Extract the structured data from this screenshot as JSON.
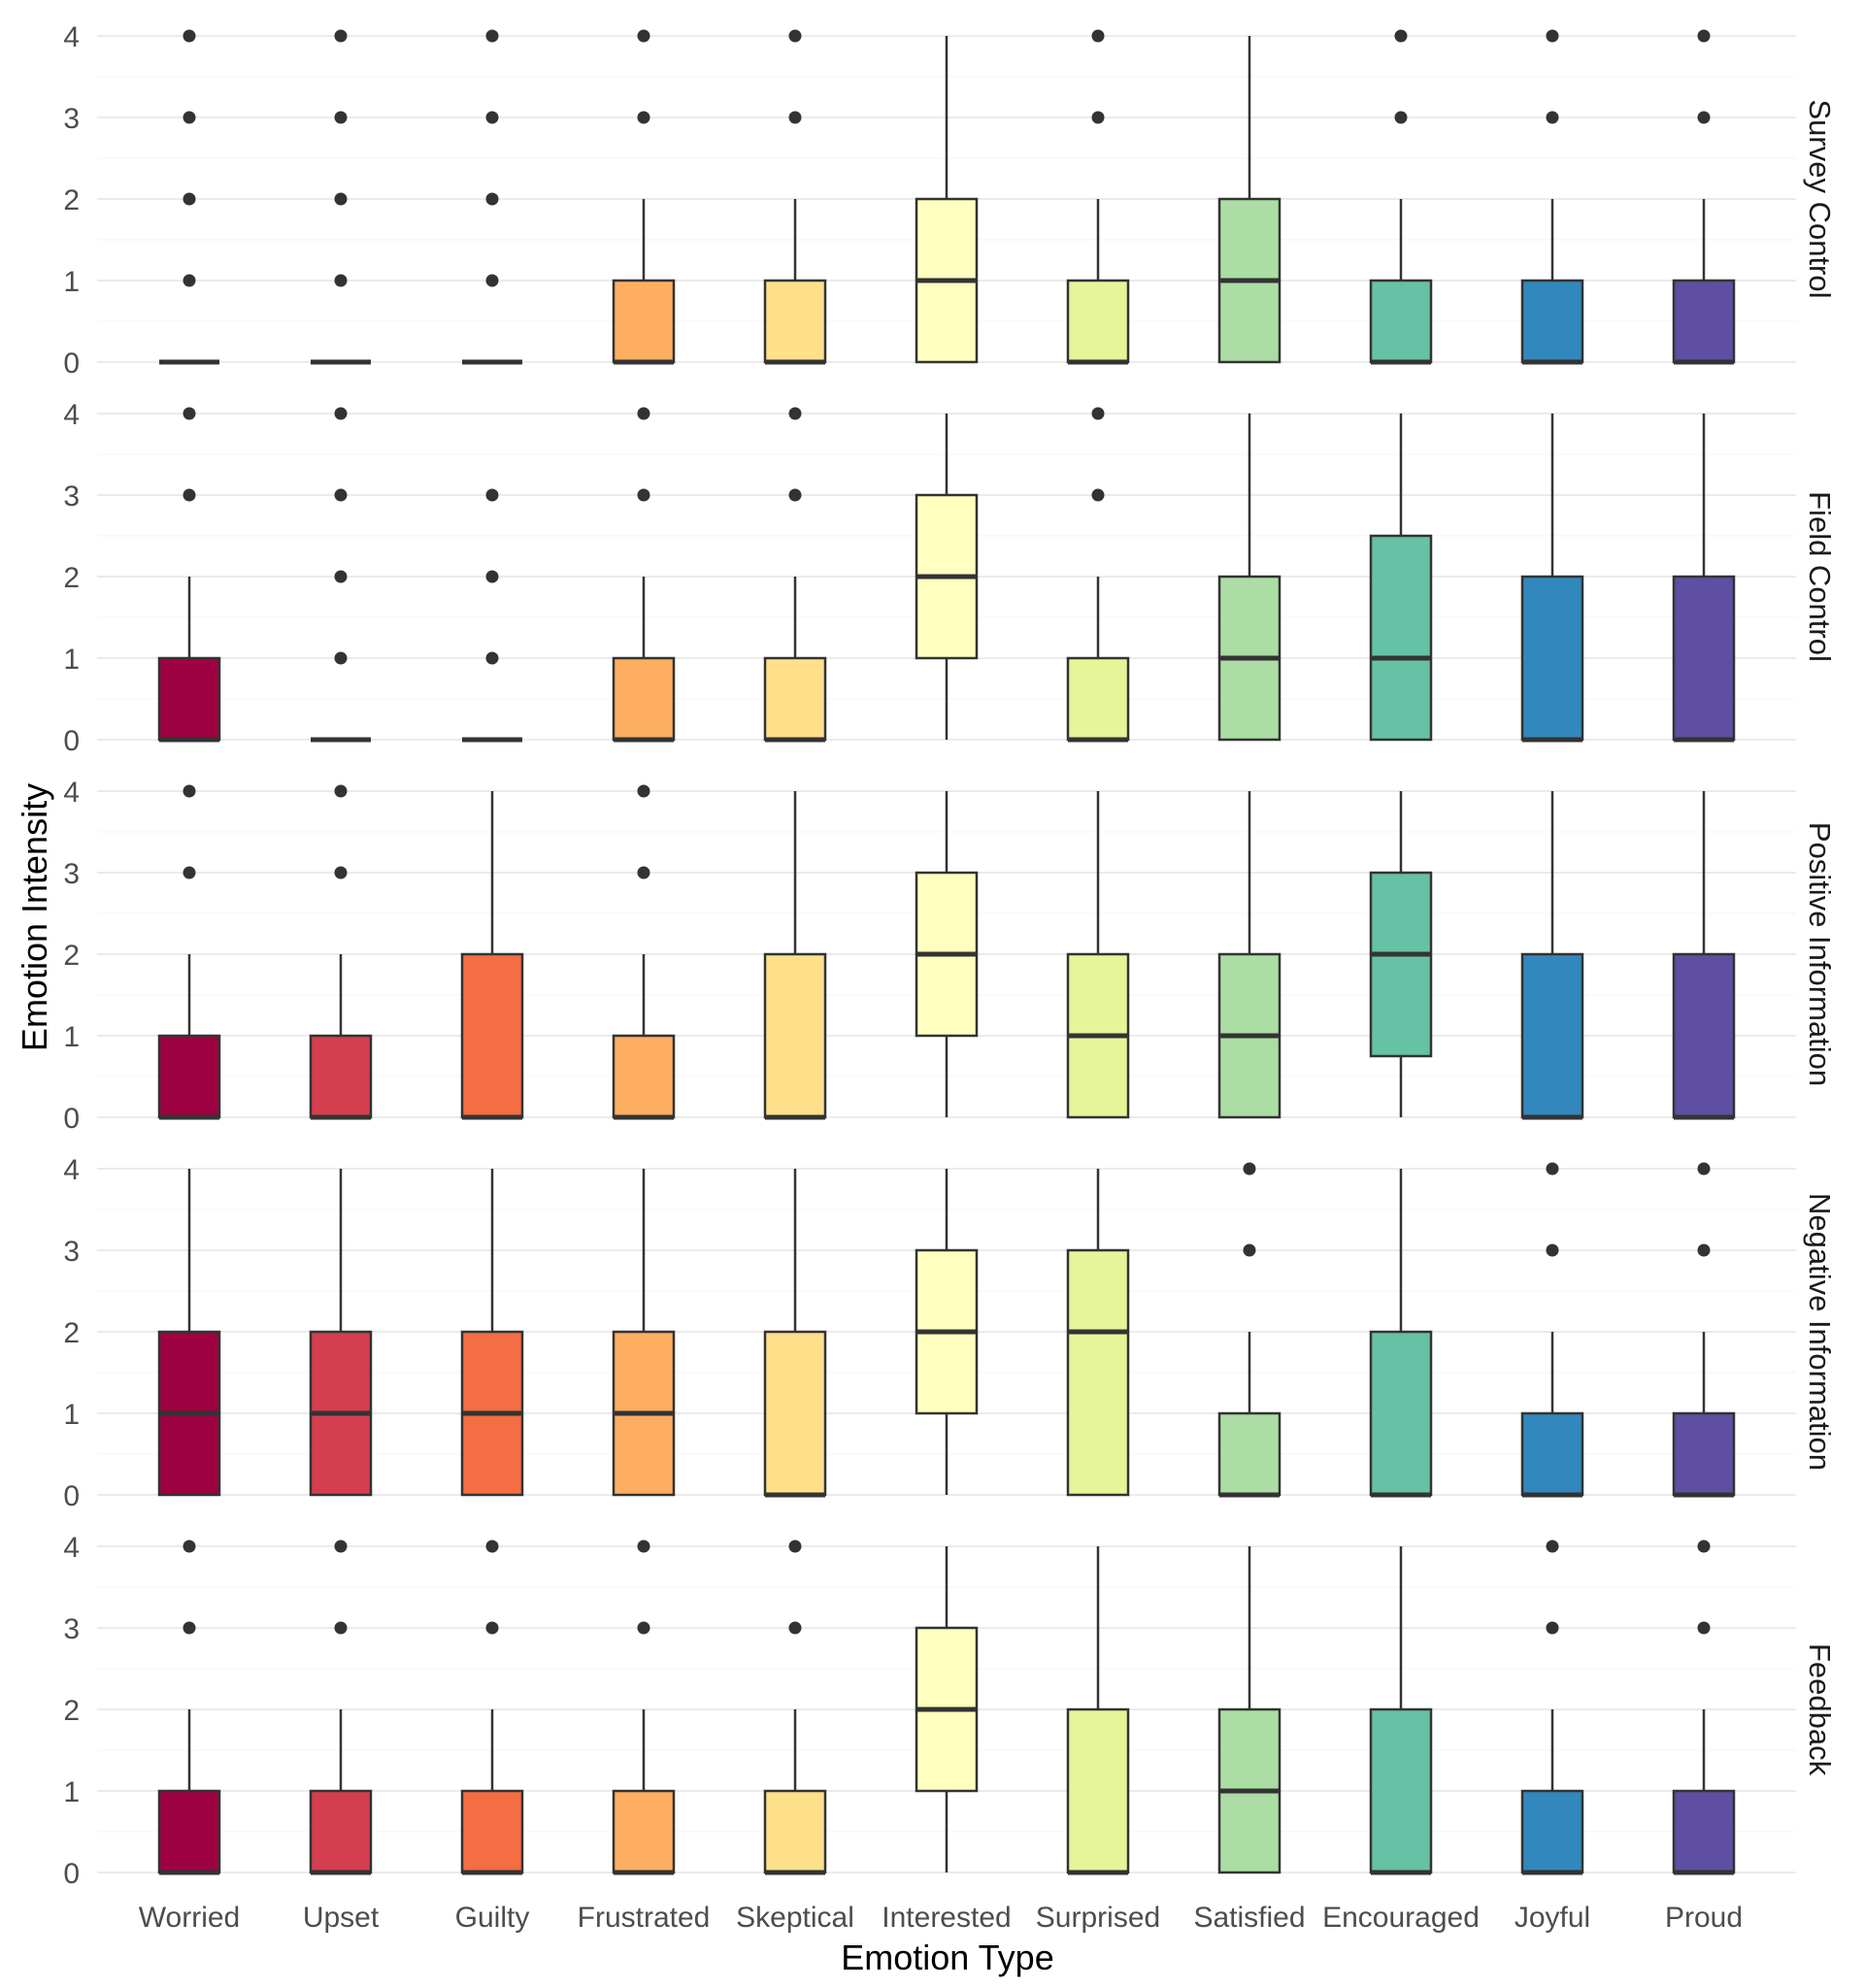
{
  "chart_data": {
    "type": "boxplot",
    "title": "",
    "xlabel": "Emotion Type",
    "ylabel": "Emotion Intensity",
    "ylim": [
      0,
      4
    ],
    "yticks": [
      0,
      1,
      2,
      3,
      4
    ],
    "grid": true,
    "legend": "none",
    "categories": [
      "Worried",
      "Upset",
      "Guilty",
      "Frustrated",
      "Skeptical",
      "Interested",
      "Surprised",
      "Satisfied",
      "Encouraged",
      "Joyful",
      "Proud"
    ],
    "colors": [
      "#9e0142",
      "#d53e4f",
      "#f46d43",
      "#fdae61",
      "#fee08b",
      "#ffffbf",
      "#e6f598",
      "#abdda4",
      "#66c2a5",
      "#3288bd",
      "#5e4fa2"
    ],
    "panels": [
      {
        "label": "Survey Control",
        "boxes": [
          {
            "q1": 0,
            "median": 0,
            "q3": 0,
            "low": 0,
            "high": 0,
            "outliers": [
              1,
              2,
              3,
              4
            ]
          },
          {
            "q1": 0,
            "median": 0,
            "q3": 0,
            "low": 0,
            "high": 0,
            "outliers": [
              1,
              2,
              3,
              4
            ]
          },
          {
            "q1": 0,
            "median": 0,
            "q3": 0,
            "low": 0,
            "high": 0,
            "outliers": [
              1,
              2,
              3,
              4
            ]
          },
          {
            "q1": 0,
            "median": 0,
            "q3": 1,
            "low": 0,
            "high": 2,
            "outliers": [
              3,
              4
            ]
          },
          {
            "q1": 0,
            "median": 0,
            "q3": 1,
            "low": 0,
            "high": 2,
            "outliers": [
              3,
              4
            ]
          },
          {
            "q1": 0,
            "median": 1,
            "q3": 2,
            "low": 0,
            "high": 4,
            "outliers": []
          },
          {
            "q1": 0,
            "median": 0,
            "q3": 1,
            "low": 0,
            "high": 2,
            "outliers": [
              3,
              4
            ]
          },
          {
            "q1": 0,
            "median": 1,
            "q3": 2,
            "low": 0,
            "high": 4,
            "outliers": []
          },
          {
            "q1": 0,
            "median": 0,
            "q3": 1,
            "low": 0,
            "high": 2,
            "outliers": [
              3,
              4
            ]
          },
          {
            "q1": 0,
            "median": 0,
            "q3": 1,
            "low": 0,
            "high": 2,
            "outliers": [
              3,
              4
            ]
          },
          {
            "q1": 0,
            "median": 0,
            "q3": 1,
            "low": 0,
            "high": 2,
            "outliers": [
              3,
              4
            ]
          }
        ]
      },
      {
        "label": "Field Control",
        "boxes": [
          {
            "q1": 0,
            "median": 0,
            "q3": 1,
            "low": 0,
            "high": 2,
            "outliers": [
              3,
              4
            ]
          },
          {
            "q1": 0,
            "median": 0,
            "q3": 0,
            "low": 0,
            "high": 0,
            "outliers": [
              1,
              2,
              3,
              4
            ]
          },
          {
            "q1": 0,
            "median": 0,
            "q3": 0,
            "low": 0,
            "high": 0,
            "outliers": [
              1,
              2,
              3
            ]
          },
          {
            "q1": 0,
            "median": 0,
            "q3": 1,
            "low": 0,
            "high": 2,
            "outliers": [
              3,
              4
            ]
          },
          {
            "q1": 0,
            "median": 0,
            "q3": 1,
            "low": 0,
            "high": 2,
            "outliers": [
              3,
              4
            ]
          },
          {
            "q1": 1,
            "median": 2,
            "q3": 3,
            "low": 0,
            "high": 4,
            "outliers": []
          },
          {
            "q1": 0,
            "median": 0,
            "q3": 1,
            "low": 0,
            "high": 2,
            "outliers": [
              3,
              4
            ]
          },
          {
            "q1": 0,
            "median": 1,
            "q3": 2,
            "low": 0,
            "high": 4,
            "outliers": []
          },
          {
            "q1": 0,
            "median": 1,
            "q3": 2.5,
            "low": 0,
            "high": 4,
            "outliers": []
          },
          {
            "q1": 0,
            "median": 0,
            "q3": 2,
            "low": 0,
            "high": 4,
            "outliers": []
          },
          {
            "q1": 0,
            "median": 0,
            "q3": 2,
            "low": 0,
            "high": 4,
            "outliers": []
          }
        ]
      },
      {
        "label": "Positive Information",
        "boxes": [
          {
            "q1": 0,
            "median": 0,
            "q3": 1,
            "low": 0,
            "high": 2,
            "outliers": [
              3,
              4
            ]
          },
          {
            "q1": 0,
            "median": 0,
            "q3": 1,
            "low": 0,
            "high": 2,
            "outliers": [
              3,
              4
            ]
          },
          {
            "q1": 0,
            "median": 0,
            "q3": 2,
            "low": 0,
            "high": 4,
            "outliers": []
          },
          {
            "q1": 0,
            "median": 0,
            "q3": 1,
            "low": 0,
            "high": 2,
            "outliers": [
              3,
              4
            ]
          },
          {
            "q1": 0,
            "median": 0,
            "q3": 2,
            "low": 0,
            "high": 4,
            "outliers": []
          },
          {
            "q1": 1,
            "median": 2,
            "q3": 3,
            "low": 0,
            "high": 4,
            "outliers": []
          },
          {
            "q1": 0,
            "median": 1,
            "q3": 2,
            "low": 0,
            "high": 4,
            "outliers": []
          },
          {
            "q1": 0,
            "median": 1,
            "q3": 2,
            "low": 0,
            "high": 4,
            "outliers": []
          },
          {
            "q1": 0.75,
            "median": 2,
            "q3": 3,
            "low": 0,
            "high": 4,
            "outliers": []
          },
          {
            "q1": 0,
            "median": 0,
            "q3": 2,
            "low": 0,
            "high": 4,
            "outliers": []
          },
          {
            "q1": 0,
            "median": 0,
            "q3": 2,
            "low": 0,
            "high": 4,
            "outliers": []
          }
        ]
      },
      {
        "label": "Negative Information",
        "boxes": [
          {
            "q1": 0,
            "median": 1,
            "q3": 2,
            "low": 0,
            "high": 4,
            "outliers": []
          },
          {
            "q1": 0,
            "median": 1,
            "q3": 2,
            "low": 0,
            "high": 4,
            "outliers": []
          },
          {
            "q1": 0,
            "median": 1,
            "q3": 2,
            "low": 0,
            "high": 4,
            "outliers": []
          },
          {
            "q1": 0,
            "median": 1,
            "q3": 2,
            "low": 0,
            "high": 4,
            "outliers": []
          },
          {
            "q1": 0,
            "median": 0,
            "q3": 2,
            "low": 0,
            "high": 4,
            "outliers": []
          },
          {
            "q1": 1,
            "median": 2,
            "q3": 3,
            "low": 0,
            "high": 4,
            "outliers": []
          },
          {
            "q1": 0,
            "median": 2,
            "q3": 3,
            "low": 0,
            "high": 4,
            "outliers": []
          },
          {
            "q1": 0,
            "median": 0,
            "q3": 1,
            "low": 0,
            "high": 2,
            "outliers": [
              3,
              4
            ]
          },
          {
            "q1": 0,
            "median": 0,
            "q3": 2,
            "low": 0,
            "high": 4,
            "outliers": []
          },
          {
            "q1": 0,
            "median": 0,
            "q3": 1,
            "low": 0,
            "high": 2,
            "outliers": [
              3,
              4
            ]
          },
          {
            "q1": 0,
            "median": 0,
            "q3": 1,
            "low": 0,
            "high": 2,
            "outliers": [
              3,
              4
            ]
          }
        ]
      },
      {
        "label": "Feedback",
        "boxes": [
          {
            "q1": 0,
            "median": 0,
            "q3": 1,
            "low": 0,
            "high": 2,
            "outliers": [
              3,
              4
            ]
          },
          {
            "q1": 0,
            "median": 0,
            "q3": 1,
            "low": 0,
            "high": 2,
            "outliers": [
              3,
              4
            ]
          },
          {
            "q1": 0,
            "median": 0,
            "q3": 1,
            "low": 0,
            "high": 2,
            "outliers": [
              3,
              4
            ]
          },
          {
            "q1": 0,
            "median": 0,
            "q3": 1,
            "low": 0,
            "high": 2,
            "outliers": [
              3,
              4
            ]
          },
          {
            "q1": 0,
            "median": 0,
            "q3": 1,
            "low": 0,
            "high": 2,
            "outliers": [
              3,
              4
            ]
          },
          {
            "q1": 1,
            "median": 2,
            "q3": 3,
            "low": 0,
            "high": 4,
            "outliers": []
          },
          {
            "q1": 0,
            "median": 0,
            "q3": 2,
            "low": 0,
            "high": 4,
            "outliers": []
          },
          {
            "q1": 0,
            "median": 1,
            "q3": 2,
            "low": 0,
            "high": 4,
            "outliers": []
          },
          {
            "q1": 0,
            "median": 0,
            "q3": 2,
            "low": 0,
            "high": 4,
            "outliers": []
          },
          {
            "q1": 0,
            "median": 0,
            "q3": 1,
            "low": 0,
            "high": 2,
            "outliers": [
              3,
              4
            ]
          },
          {
            "q1": 0,
            "median": 0,
            "q3": 1,
            "low": 0,
            "high": 2,
            "outliers": [
              3,
              4
            ]
          }
        ]
      }
    ]
  }
}
